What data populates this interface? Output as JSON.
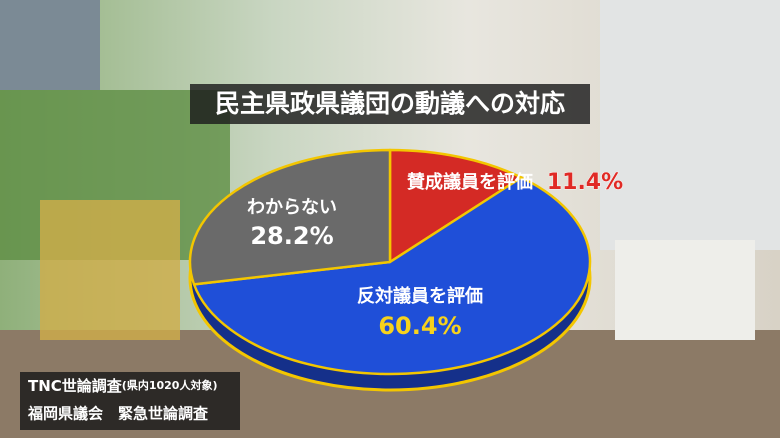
{
  "chart_data": {
    "type": "pie",
    "title": "民主県政県議団の動議への対応",
    "categories": [
      "賛成議員を評価",
      "反対議員を評価",
      "わからない"
    ],
    "values": [
      11.4,
      60.4,
      28.2
    ],
    "value_labels": [
      "11.4%",
      "60.4%",
      "28.2%"
    ],
    "colors": [
      "#d42a25",
      "#1f4fd8",
      "#6a6a6a"
    ],
    "source": {
      "line1": "TNC世論調査",
      "line1_note": "(県内1020人対象)",
      "line2": "福岡県議会　緊急世論調査"
    }
  }
}
